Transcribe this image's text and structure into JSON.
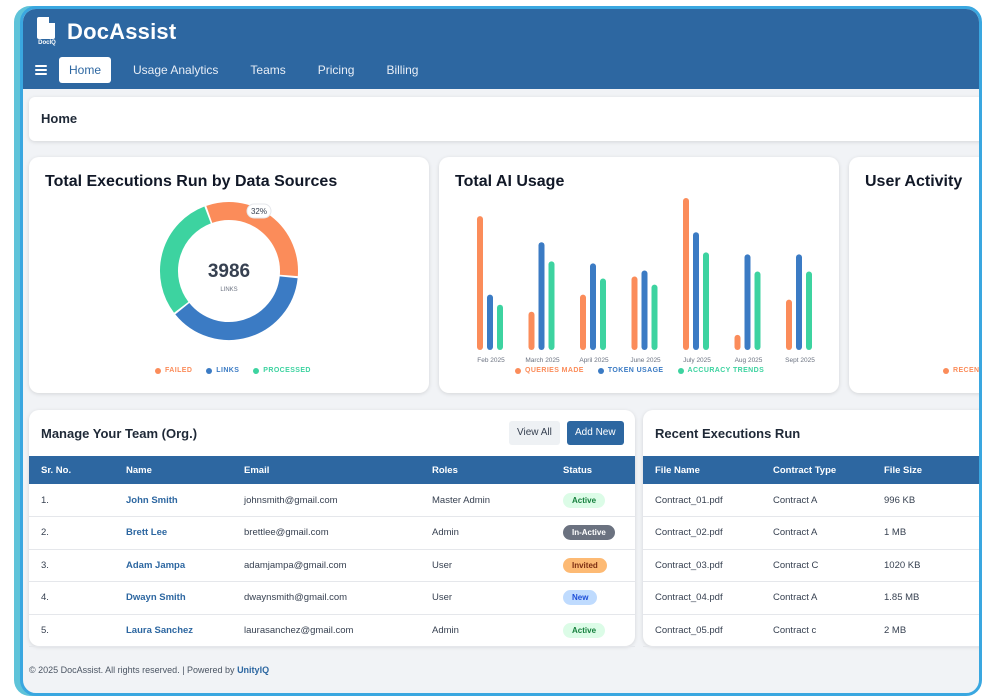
{
  "app": {
    "name": "DocAssist",
    "logo_text": "DocIQ"
  },
  "nav": {
    "items": [
      "Home",
      "Usage Analytics",
      "Teams",
      "Pricing",
      "Billing"
    ],
    "active": "Home"
  },
  "breadcrumb": {
    "title": "Home"
  },
  "cards": {
    "executions": {
      "title": "Total Executions Run by Data Sources",
      "center_value": "3986",
      "center_label": "LINKS",
      "callout": "32%"
    },
    "ai_usage": {
      "title": "Total AI Usage"
    },
    "user_activity": {
      "title": "User Activity",
      "legend_partial": "RECEN"
    }
  },
  "colors": {
    "primary": "#2d67a1",
    "failed": "#fb8c5a",
    "links": "#3b7bc4",
    "processed": "#3dd3a0"
  },
  "chart_data": [
    {
      "type": "pie",
      "title": "Total Executions Run by Data Sources",
      "labels": [
        "FAILED",
        "LINKS",
        "PROCESSED"
      ],
      "values": [
        32,
        38,
        30
      ],
      "center_value": 3986,
      "center_label": "LINKS"
    },
    {
      "type": "bar",
      "title": "Total AI Usage",
      "categories": [
        "Feb 2025",
        "March 2025",
        "April 2025",
        "June 2025",
        "July 2025",
        "Aug 2025",
        "Sept 2025"
      ],
      "series": [
        {
          "name": "QUERIES MADE",
          "values": [
            133,
            38,
            55,
            73,
            151,
            15,
            50
          ]
        },
        {
          "name": "TOKEN USAGE",
          "values": [
            55,
            107,
            86,
            79,
            117,
            95,
            95
          ]
        },
        {
          "name": "ACCURACY TRENDS",
          "values": [
            45,
            88,
            71,
            65,
            97,
            78,
            78
          ]
        }
      ],
      "legend": "bottom"
    }
  ],
  "team": {
    "title": "Manage Your Team (Org.)",
    "view_all": "View All",
    "add_new": "Add New",
    "headers": [
      "Sr. No.",
      "Name",
      "Email",
      "Roles",
      "Status"
    ],
    "rows": [
      {
        "sr": "1.",
        "name": "John Smith",
        "email": "johnsmith@gmail.com",
        "role": "Master Admin",
        "status": "Active"
      },
      {
        "sr": "2.",
        "name": "Brett Lee",
        "email": "brettlee@gmail.com",
        "role": "Admin",
        "status": "In-Active"
      },
      {
        "sr": "3.",
        "name": "Adam Jampa",
        "email": "adamjampa@gmail.com",
        "role": "User",
        "status": "Invited"
      },
      {
        "sr": "4.",
        "name": "Dwayn Smith",
        "email": "dwaynsmith@gmail.com",
        "role": "User",
        "status": "New"
      },
      {
        "sr": "5.",
        "name": "Laura Sanchez",
        "email": "laurasanchez@gmail.com",
        "role": "Admin",
        "status": "Active"
      }
    ]
  },
  "executions": {
    "title": "Recent Executions Run",
    "headers": [
      "File Name",
      "Contract Type",
      "File Size"
    ],
    "rows": [
      {
        "file": "Contract_01.pdf",
        "type": "Contract A",
        "size": "996 KB"
      },
      {
        "file": "Contract_02.pdf",
        "type": "Contract A",
        "size": "1 MB"
      },
      {
        "file": "Contract_03.pdf",
        "type": "Contract C",
        "size": "1020 KB"
      },
      {
        "file": "Contract_04.pdf",
        "type": "Contract A",
        "size": "1.85 MB"
      },
      {
        "file": "Contract_05.pdf",
        "type": "Contract c",
        "size": "2 MB"
      }
    ]
  },
  "footer": {
    "text": "© 2025 DocAssist. All rights reserved. | Powered by ",
    "brand": "UnityIQ"
  }
}
